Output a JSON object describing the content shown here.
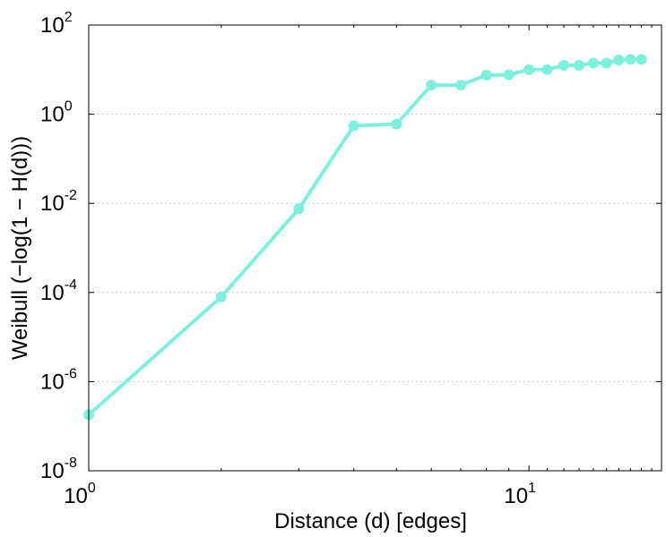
{
  "chart_data": {
    "type": "line",
    "xlabel": "Distance (d) [edges]",
    "ylabel": "Weibull (−log(1 − H(d)))",
    "x_scale": "log",
    "y_scale": "log",
    "xlim": [
      1,
      20
    ],
    "ylim": [
      1e-08,
      100
    ],
    "grid": "horizontal-dotted",
    "legend": "none",
    "color": "#7cf2dd",
    "x_ticks": [
      {
        "value": 1,
        "base": "10",
        "exp": "0"
      },
      {
        "value": 10,
        "base": "10",
        "exp": "1"
      }
    ],
    "y_ticks": [
      {
        "value": 1e-08,
        "base": "10",
        "exp": "-8"
      },
      {
        "value": 1e-06,
        "base": "10",
        "exp": "-6"
      },
      {
        "value": 0.0001,
        "base": "10",
        "exp": "-4"
      },
      {
        "value": 0.01,
        "base": "10",
        "exp": "-2"
      },
      {
        "value": 1,
        "base": "10",
        "exp": "0"
      },
      {
        "value": 100,
        "base": "10",
        "exp": "2"
      }
    ],
    "series": [
      {
        "x": [
          1,
          2,
          3,
          4,
          5,
          6,
          7,
          8,
          9,
          10,
          11,
          12,
          13,
          14,
          15,
          16,
          17,
          18
        ],
        "y": [
          1.8e-07,
          8e-05,
          0.0075,
          0.55,
          0.6,
          4.5,
          4.5,
          7.5,
          7.7,
          10,
          10,
          12.5,
          12.5,
          14,
          14,
          16.5,
          17,
          17
        ]
      }
    ]
  }
}
